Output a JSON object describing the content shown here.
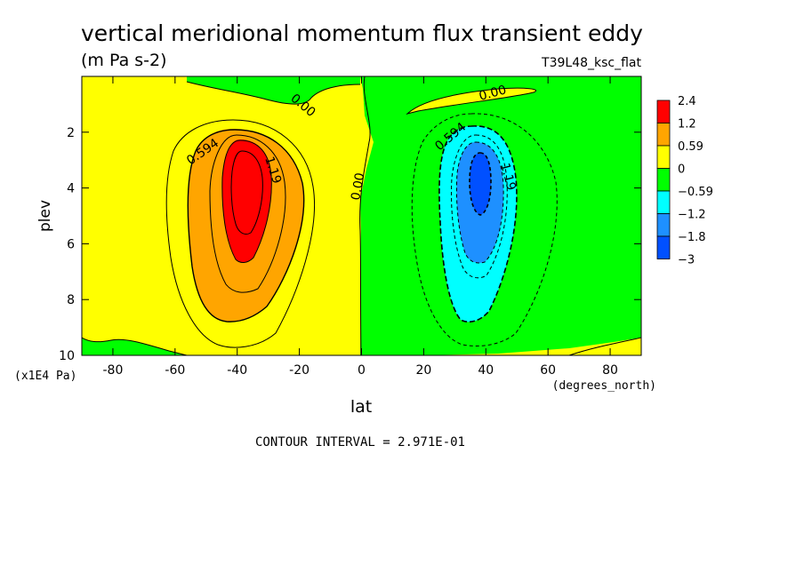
{
  "chart_data": {
    "type": "heatmap",
    "title": "vertical meridional momentum flux transient eddy",
    "units": "(m Pa s-2)",
    "run_label": "T39L48_ksc_flat",
    "xlabel": "lat",
    "x_units": "(degrees_north)",
    "ylabel": "plev",
    "y_units": "(x1E4 Pa)",
    "xlim": [
      -90,
      90
    ],
    "ylim": [
      10,
      0
    ],
    "x_ticks": [
      -80,
      -60,
      -40,
      -20,
      0,
      20,
      40,
      60,
      80
    ],
    "y_ticks": [
      2,
      4,
      6,
      8,
      10
    ],
    "contour_interval_text": "CONTOUR INTERVAL = 2.971E-01",
    "contour_labels": [
      "0.00",
      "0.00",
      "0.00",
      "0.594",
      "1.19",
      "0.594",
      "1.19"
    ],
    "colorbar": {
      "labels": [
        "2.4",
        "1.2",
        "0.59",
        "0",
        "−0.59",
        "−1.2",
        "−1.8",
        "−3"
      ],
      "colors": [
        "#ff0000",
        "#ffa500",
        "#ffff00",
        "#00ff00",
        "#00ffff",
        "#1e90ff",
        "#0050ff"
      ]
    },
    "features": [
      {
        "name": "southern positive maximum",
        "lat": -37,
        "plev": 4.5,
        "value": 2.4
      },
      {
        "name": "northern negative minimum",
        "lat": 37,
        "plev": 4.0,
        "value": -2.1
      }
    ]
  }
}
